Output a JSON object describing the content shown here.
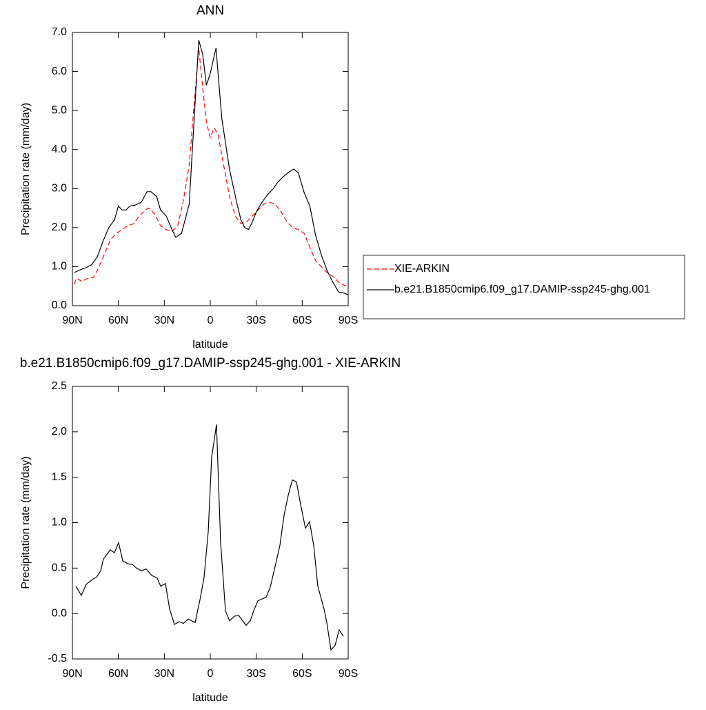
{
  "chart_data": [
    {
      "type": "line",
      "title": "ANN",
      "x_label": "latitude",
      "y_label": "Precipitation rate (mm/day)",
      "xlim": [
        90,
        -90
      ],
      "xticks": [
        {
          "value": 90,
          "label": "90N"
        },
        {
          "value": 60,
          "label": "60N"
        },
        {
          "value": 30,
          "label": "30N"
        },
        0,
        {
          "value": -30,
          "label": "30S"
        },
        {
          "value": -60,
          "label": "60S"
        },
        {
          "value": -90,
          "label": "90S"
        }
      ],
      "ylim": [
        0,
        7
      ],
      "yticks": [
        {
          "value": 0,
          "label": "0.0"
        },
        {
          "value": 1,
          "label": "1.0"
        },
        {
          "value": 2,
          "label": "2.0"
        },
        {
          "value": 3,
          "label": "3.0"
        },
        {
          "value": 4,
          "label": "4.0"
        },
        {
          "value": 5,
          "label": "5.0"
        },
        {
          "value": 6,
          "label": "6.0"
        },
        {
          "value": 7,
          "label": "7.0"
        }
      ],
      "legend": "right",
      "series": [
        {
          "name": "XIE-ARKIN",
          "color": "#ff0000",
          "dash": "dashed",
          "x": [
            88.75,
            87.5,
            83.75,
            80,
            76.25,
            72.5,
            68.75,
            65,
            61.25,
            57.5,
            53.75,
            50,
            46.25,
            42.5,
            40,
            36.25,
            32.5,
            28.75,
            25,
            21.25,
            17.5,
            13.75,
            7.5,
            5,
            2.5,
            0,
            -2.5,
            -5,
            -8.75,
            -12.5,
            -16.25,
            -20,
            -23.75,
            -27.5,
            -31.25,
            -35,
            -38.75,
            -42.5,
            -46.25,
            -50,
            -53.75,
            -57.5,
            -61.25,
            -65,
            -68.75,
            -72.5,
            -76.25,
            -80,
            -83.75,
            -87.5,
            -90
          ],
          "values": [
            0.55,
            0.7,
            0.62,
            0.7,
            0.72,
            1.0,
            1.35,
            1.7,
            1.85,
            1.95,
            2.05,
            2.1,
            2.3,
            2.45,
            2.5,
            2.35,
            2.05,
            1.95,
            1.9,
            2.05,
            2.7,
            3.6,
            6.6,
            5.6,
            4.7,
            4.3,
            4.55,
            4.4,
            3.6,
            2.8,
            2.3,
            2.1,
            2.15,
            2.3,
            2.45,
            2.6,
            2.65,
            2.6,
            2.4,
            2.15,
            2.0,
            1.95,
            1.85,
            1.5,
            1.15,
            1.0,
            0.85,
            0.75,
            0.6,
            0.52,
            0.5
          ]
        },
        {
          "name": "b.e21.B1850cmip6.f09_g17.DAMIP-ssp245-ghg.001",
          "color": "#000000",
          "dash": "solid",
          "x": [
            88.75,
            85,
            81.25,
            77.5,
            73.75,
            70,
            66.25,
            62.5,
            60,
            57.5,
            55,
            52.5,
            48.75,
            45,
            41.25,
            38.75,
            35,
            32.5,
            28.75,
            25,
            22.5,
            18.75,
            13.75,
            7.5,
            5,
            2.5,
            0,
            -3.75,
            -7.5,
            -12.5,
            -17.5,
            -20,
            -22.5,
            -25,
            -27.5,
            -30,
            -33.75,
            -37.5,
            -41.25,
            -43.75,
            -47.5,
            -51.25,
            -54.5,
            -57.5,
            -61.25,
            -65,
            -68.75,
            -72.5,
            -76.25,
            -80,
            -83.75,
            -87.5,
            -90
          ],
          "values": [
            0.85,
            0.92,
            0.97,
            1.05,
            1.25,
            1.65,
            2.0,
            2.2,
            2.55,
            2.45,
            2.45,
            2.55,
            2.58,
            2.65,
            2.92,
            2.92,
            2.8,
            2.45,
            2.3,
            1.95,
            1.75,
            1.85,
            2.6,
            6.8,
            6.45,
            5.65,
            5.95,
            6.6,
            4.8,
            3.5,
            2.6,
            2.2,
            2.0,
            1.95,
            2.15,
            2.4,
            2.65,
            2.85,
            3.0,
            3.15,
            3.3,
            3.42,
            3.5,
            3.4,
            2.9,
            2.55,
            1.8,
            1.3,
            0.9,
            0.6,
            0.35,
            0.32,
            0.28
          ]
        }
      ]
    },
    {
      "type": "line",
      "title": "b.e21.B1850cmip6.f09_g17.DAMIP-ssp245-ghg.001 - XIE-ARKIN",
      "x_label": "latitude",
      "y_label": "Precipitation rate (mm/day)",
      "xlim": [
        90,
        -90
      ],
      "xticks": [
        {
          "value": 90,
          "label": "90N"
        },
        {
          "value": 60,
          "label": "60N"
        },
        {
          "value": 30,
          "label": "30N"
        },
        0,
        {
          "value": -30,
          "label": "30S"
        },
        {
          "value": -60,
          "label": "60S"
        },
        {
          "value": -90,
          "label": "90S"
        }
      ],
      "ylim": [
        -0.5,
        2.5
      ],
      "yticks": [
        -0.5,
        {
          "value": 0,
          "label": "0.0"
        },
        0.5,
        {
          "value": 1,
          "label": "1.0"
        },
        1.5,
        {
          "value": 2,
          "label": "2.0"
        },
        2.5
      ],
      "series": [
        {
          "color": "#000000",
          "dash": "solid",
          "x": [
            87.75,
            84.15,
            81,
            76.5,
            74.25,
            71.55,
            69.75,
            65.25,
            62.55,
            59.85,
            57.15,
            54,
            50.85,
            48.15,
            45,
            41.85,
            38.25,
            34.65,
            32.4,
            29.25,
            26.55,
            23.4,
            20.25,
            17.55,
            14.4,
            9.9,
            6.75,
            4.05,
            1.35,
            -0.9,
            -4.05,
            -6.75,
            -9.9,
            -12.6,
            -15.75,
            -18.45,
            -23.4,
            -26.1,
            -28.35,
            -31.05,
            -36.45,
            -39.15,
            -42.75,
            -45.45,
            -48.15,
            -50.85,
            -53.55,
            -56.25,
            -58.95,
            -62.1,
            -64.8,
            -67.5,
            -70.2,
            -74.25,
            -76.05,
            -78.75,
            -81.45,
            -84.15,
            -86.85
          ],
          "values": [
            0.3,
            0.2,
            0.32,
            0.38,
            0.4,
            0.47,
            0.6,
            0.7,
            0.67,
            0.78,
            0.58,
            0.55,
            0.54,
            0.5,
            0.47,
            0.49,
            0.42,
            0.39,
            0.3,
            0.33,
            0.05,
            -0.12,
            -0.09,
            -0.11,
            -0.06,
            -0.1,
            0.15,
            0.4,
            0.9,
            1.72,
            2.08,
            0.78,
            0.03,
            -0.08,
            -0.03,
            -0.02,
            -0.13,
            -0.08,
            0.03,
            0.14,
            0.18,
            0.29,
            0.55,
            0.75,
            1.08,
            1.3,
            1.47,
            1.45,
            1.2,
            0.94,
            1.01,
            0.75,
            0.3,
            0.05,
            -0.1,
            -0.4,
            -0.35,
            -0.18,
            -0.25
          ]
        }
      ]
    }
  ]
}
